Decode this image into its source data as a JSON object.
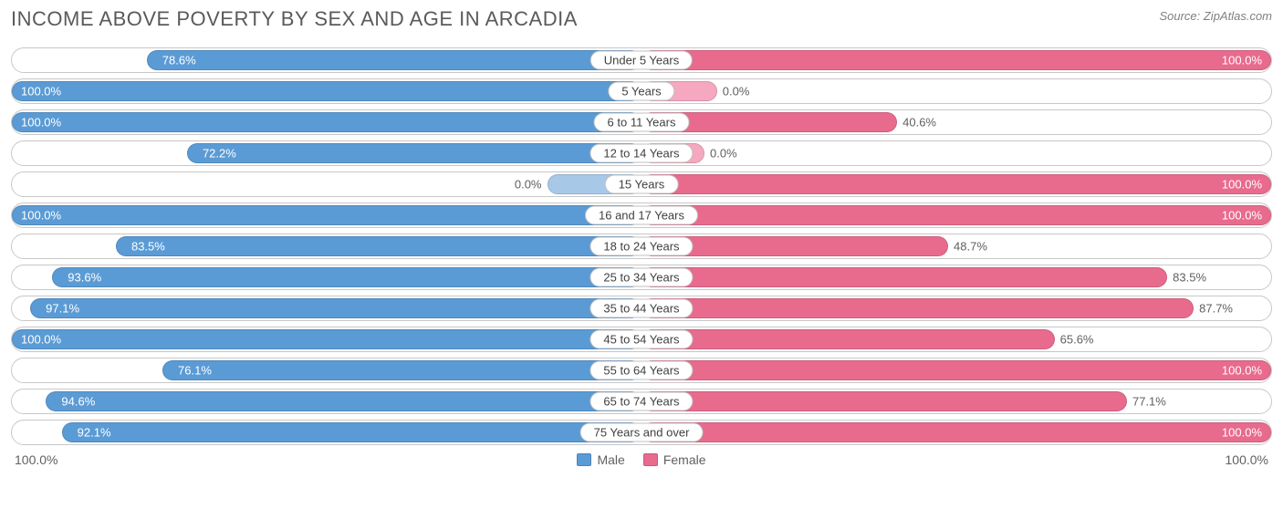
{
  "title": "INCOME ABOVE POVERTY BY SEX AND AGE IN ARCADIA",
  "source": "Source: ZipAtlas.com",
  "colors": {
    "male_full": "#5b9bd5",
    "male_zero": "#a8c8e8",
    "female_full": "#e86b8e",
    "female_zero": "#f5a8c0",
    "text_on_bar": "#ffffff",
    "text_off_bar": "#606060",
    "row_border": "#c8c8c8",
    "background": "#ffffff"
  },
  "axis": {
    "left_label": "100.0%",
    "right_label": "100.0%"
  },
  "legend": {
    "male": "Male",
    "female": "Female"
  },
  "rows": [
    {
      "category": "Under 5 Years",
      "male": 78.6,
      "male_label": "78.6%",
      "female": 100.0,
      "female_label": "100.0%"
    },
    {
      "category": "5 Years",
      "male": 100.0,
      "male_label": "100.0%",
      "female": 0.0,
      "female_label": "0.0%",
      "female_stub": 12
    },
    {
      "category": "6 to 11 Years",
      "male": 100.0,
      "male_label": "100.0%",
      "female": 40.6,
      "female_label": "40.6%"
    },
    {
      "category": "12 to 14 Years",
      "male": 72.2,
      "male_label": "72.2%",
      "female": 0.0,
      "female_label": "0.0%",
      "female_stub": 10
    },
    {
      "category": "15 Years",
      "male": 0.0,
      "male_label": "0.0%",
      "male_stub": 15,
      "female": 100.0,
      "female_label": "100.0%"
    },
    {
      "category": "16 and 17 Years",
      "male": 100.0,
      "male_label": "100.0%",
      "female": 100.0,
      "female_label": "100.0%"
    },
    {
      "category": "18 to 24 Years",
      "male": 83.5,
      "male_label": "83.5%",
      "female": 48.7,
      "female_label": "48.7%"
    },
    {
      "category": "25 to 34 Years",
      "male": 93.6,
      "male_label": "93.6%",
      "female": 83.5,
      "female_label": "83.5%"
    },
    {
      "category": "35 to 44 Years",
      "male": 97.1,
      "male_label": "97.1%",
      "female": 87.7,
      "female_label": "87.7%"
    },
    {
      "category": "45 to 54 Years",
      "male": 100.0,
      "male_label": "100.0%",
      "female": 65.6,
      "female_label": "65.6%"
    },
    {
      "category": "55 to 64 Years",
      "male": 76.1,
      "male_label": "76.1%",
      "female": 100.0,
      "female_label": "100.0%"
    },
    {
      "category": "65 to 74 Years",
      "male": 94.6,
      "male_label": "94.6%",
      "female": 77.1,
      "female_label": "77.1%"
    },
    {
      "category": "75 Years and over",
      "male": 92.1,
      "male_label": "92.1%",
      "female": 100.0,
      "female_label": "100.0%"
    }
  ]
}
